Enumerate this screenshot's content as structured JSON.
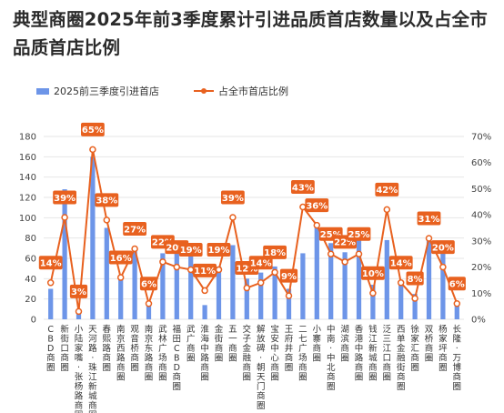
{
  "title": "典型商圈2025年前3季度累计引进品质首店数量以及占全市品质首店比例",
  "chart_data": {
    "type": "bar",
    "title": "典型商圈2025年前3季度累计引进品质首店数量以及占全市品质首店比例",
    "categories": [
      "CBD商圈",
      "新街口商圈",
      "小陆家嘴·张杨路商圈",
      "天河路·珠江新城商圈",
      "春熙路商圈",
      "南京西路商圈",
      "观音桥商圈",
      "南京东路商圈",
      "武林广场商圈",
      "福田CBD商圈",
      "武广商圈",
      "淮海中路商圈",
      "金街商圈",
      "五一商圈",
      "交子金融商圈",
      "解放碑·朝天门商圈",
      "宝安中心商圈",
      "王府井商圈",
      "二七广场商圈",
      "小寨商圈",
      "中南·中北商圈",
      "湖滨商圈",
      "香港中路商圈",
      "钱江新城商圈",
      "泛三江口商圈",
      "西单金融街商圈",
      "徐家汇商圈",
      "双桥商圈",
      "杨家坪商圈",
      "长隆·万博商圈"
    ],
    "series": [
      {
        "name": "2025前三季度引进首店",
        "type": "bar",
        "axis": "left",
        "values": [
          30,
          128,
          10,
          160,
          90,
          42,
          72,
          14,
          65,
          70,
          65,
          14,
          52,
          73,
          40,
          46,
          52,
          30,
          65,
          93,
          75,
          66,
          80,
          34,
          78,
          34,
          25,
          80,
          65,
          14
        ]
      },
      {
        "name": "占全市首店比例",
        "type": "line",
        "axis": "right",
        "unit": "%",
        "values": [
          14,
          39,
          3,
          65,
          38,
          16,
          27,
          6,
          22,
          20,
          19,
          11,
          19,
          39,
          12,
          14,
          18,
          9,
          43,
          36,
          25,
          22,
          25,
          10,
          42,
          14,
          8,
          31,
          20,
          6
        ]
      }
    ],
    "yleft": {
      "ticks": [
        "0",
        "20",
        "40",
        "60",
        "80",
        "100",
        "120",
        "140",
        "160",
        "180"
      ],
      "ylim": [
        0,
        180
      ]
    },
    "yright": {
      "ticks": [
        "0%",
        "10%",
        "20%",
        "30%",
        "40%",
        "50%",
        "60%",
        "70%"
      ],
      "ylim": [
        0,
        70
      ]
    },
    "legend": "top-left",
    "grid": true,
    "colors": {
      "bar": "#6d95e8",
      "line": "#e8611f",
      "label_bg": "#e8611f",
      "label_text": "#ffffff"
    }
  }
}
